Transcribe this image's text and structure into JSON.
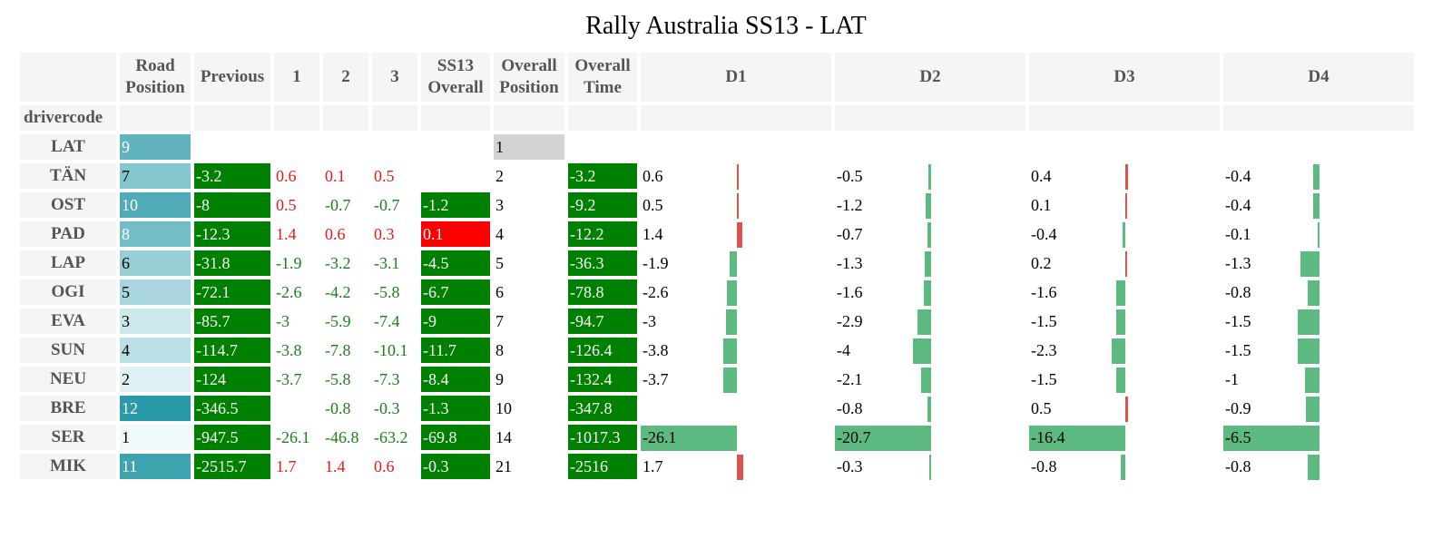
{
  "title": "Rally Australia SS13 - LAT",
  "headers": {
    "road_position": "Road Position",
    "previous": "Previous",
    "s1": "1",
    "s2": "2",
    "s3": "3",
    "ss13_overall": "SS13 Overall",
    "overall_position": "Overall Position",
    "overall_time": "Overall Time",
    "d1": "D1",
    "d2": "D2",
    "d3": "D3",
    "d4": "D4",
    "index_name": "drivercode"
  },
  "colors": {
    "positive": "#d9534f",
    "negative": "#5cb97f",
    "green_cell": "#008000",
    "red_cell": "#ff0000",
    "road_min": "#f0f9fa",
    "road_max": "#2b9aa8"
  },
  "rows": [
    {
      "driver": "LAT",
      "road": "9",
      "previous": "",
      "s1": "",
      "s2": "",
      "s3": "",
      "ss13": "",
      "opos": "1",
      "otime": "",
      "d1": "",
      "d2": "",
      "d3": "",
      "d4": ""
    },
    {
      "driver": "TÄN",
      "road": "7",
      "previous": "-3.2",
      "s1": "0.6",
      "s2": "0.1",
      "s3": "0.5",
      "ss13": "",
      "opos": "2",
      "otime": "-3.2",
      "d1": "0.6",
      "d2": "-0.5",
      "d3": "0.4",
      "d4": "-0.4"
    },
    {
      "driver": "OST",
      "road": "10",
      "previous": "-8",
      "s1": "0.5",
      "s2": "-0.7",
      "s3": "-0.7",
      "ss13": "-1.2",
      "opos": "3",
      "otime": "-9.2",
      "d1": "0.5",
      "d2": "-1.2",
      "d3": "0.1",
      "d4": "-0.4"
    },
    {
      "driver": "PAD",
      "road": "8",
      "previous": "-12.3",
      "s1": "1.4",
      "s2": "0.6",
      "s3": "0.3",
      "ss13": "0.1",
      "opos": "4",
      "otime": "-12.2",
      "d1": "1.4",
      "d2": "-0.7",
      "d3": "-0.4",
      "d4": "-0.1"
    },
    {
      "driver": "LAP",
      "road": "6",
      "previous": "-31.8",
      "s1": "-1.9",
      "s2": "-3.2",
      "s3": "-3.1",
      "ss13": "-4.5",
      "opos": "5",
      "otime": "-36.3",
      "d1": "-1.9",
      "d2": "-1.3",
      "d3": "0.2",
      "d4": "-1.3"
    },
    {
      "driver": "OGI",
      "road": "5",
      "previous": "-72.1",
      "s1": "-2.6",
      "s2": "-4.2",
      "s3": "-5.8",
      "ss13": "-6.7",
      "opos": "6",
      "otime": "-78.8",
      "d1": "-2.6",
      "d2": "-1.6",
      "d3": "-1.6",
      "d4": "-0.8"
    },
    {
      "driver": "EVA",
      "road": "3",
      "previous": "-85.7",
      "s1": "-3",
      "s2": "-5.9",
      "s3": "-7.4",
      "ss13": "-9",
      "opos": "7",
      "otime": "-94.7",
      "d1": "-3",
      "d2": "-2.9",
      "d3": "-1.5",
      "d4": "-1.5"
    },
    {
      "driver": "SUN",
      "road": "4",
      "previous": "-114.7",
      "s1": "-3.8",
      "s2": "-7.8",
      "s3": "-10.1",
      "ss13": "-11.7",
      "opos": "8",
      "otime": "-126.4",
      "d1": "-3.8",
      "d2": "-4",
      "d3": "-2.3",
      "d4": "-1.5"
    },
    {
      "driver": "NEU",
      "road": "2",
      "previous": "-124",
      "s1": "-3.7",
      "s2": "-5.8",
      "s3": "-7.3",
      "ss13": "-8.4",
      "opos": "9",
      "otime": "-132.4",
      "d1": "-3.7",
      "d2": "-2.1",
      "d3": "-1.5",
      "d4": "-1"
    },
    {
      "driver": "BRE",
      "road": "12",
      "previous": "-346.5",
      "s1": "",
      "s2": "-0.8",
      "s3": "-0.3",
      "ss13": "-1.3",
      "opos": "10",
      "otime": "-347.8",
      "d1": "",
      "d2": "-0.8",
      "d3": "0.5",
      "d4": "-0.9"
    },
    {
      "driver": "SER",
      "road": "1",
      "previous": "-947.5",
      "s1": "-26.1",
      "s2": "-46.8",
      "s3": "-63.2",
      "ss13": "-69.8",
      "opos": "14",
      "otime": "-1017.3",
      "d1": "-26.1",
      "d2": "-20.7",
      "d3": "-16.4",
      "d4": "-6.5"
    },
    {
      "driver": "MIK",
      "road": "11",
      "previous": "-2515.7",
      "s1": "1.7",
      "s2": "1.4",
      "s3": "0.6",
      "ss13": "-0.3",
      "opos": "21",
      "otime": "-2516",
      "d1": "1.7",
      "d2": "-0.3",
      "d3": "-0.8",
      "d4": "-0.8"
    }
  ]
}
